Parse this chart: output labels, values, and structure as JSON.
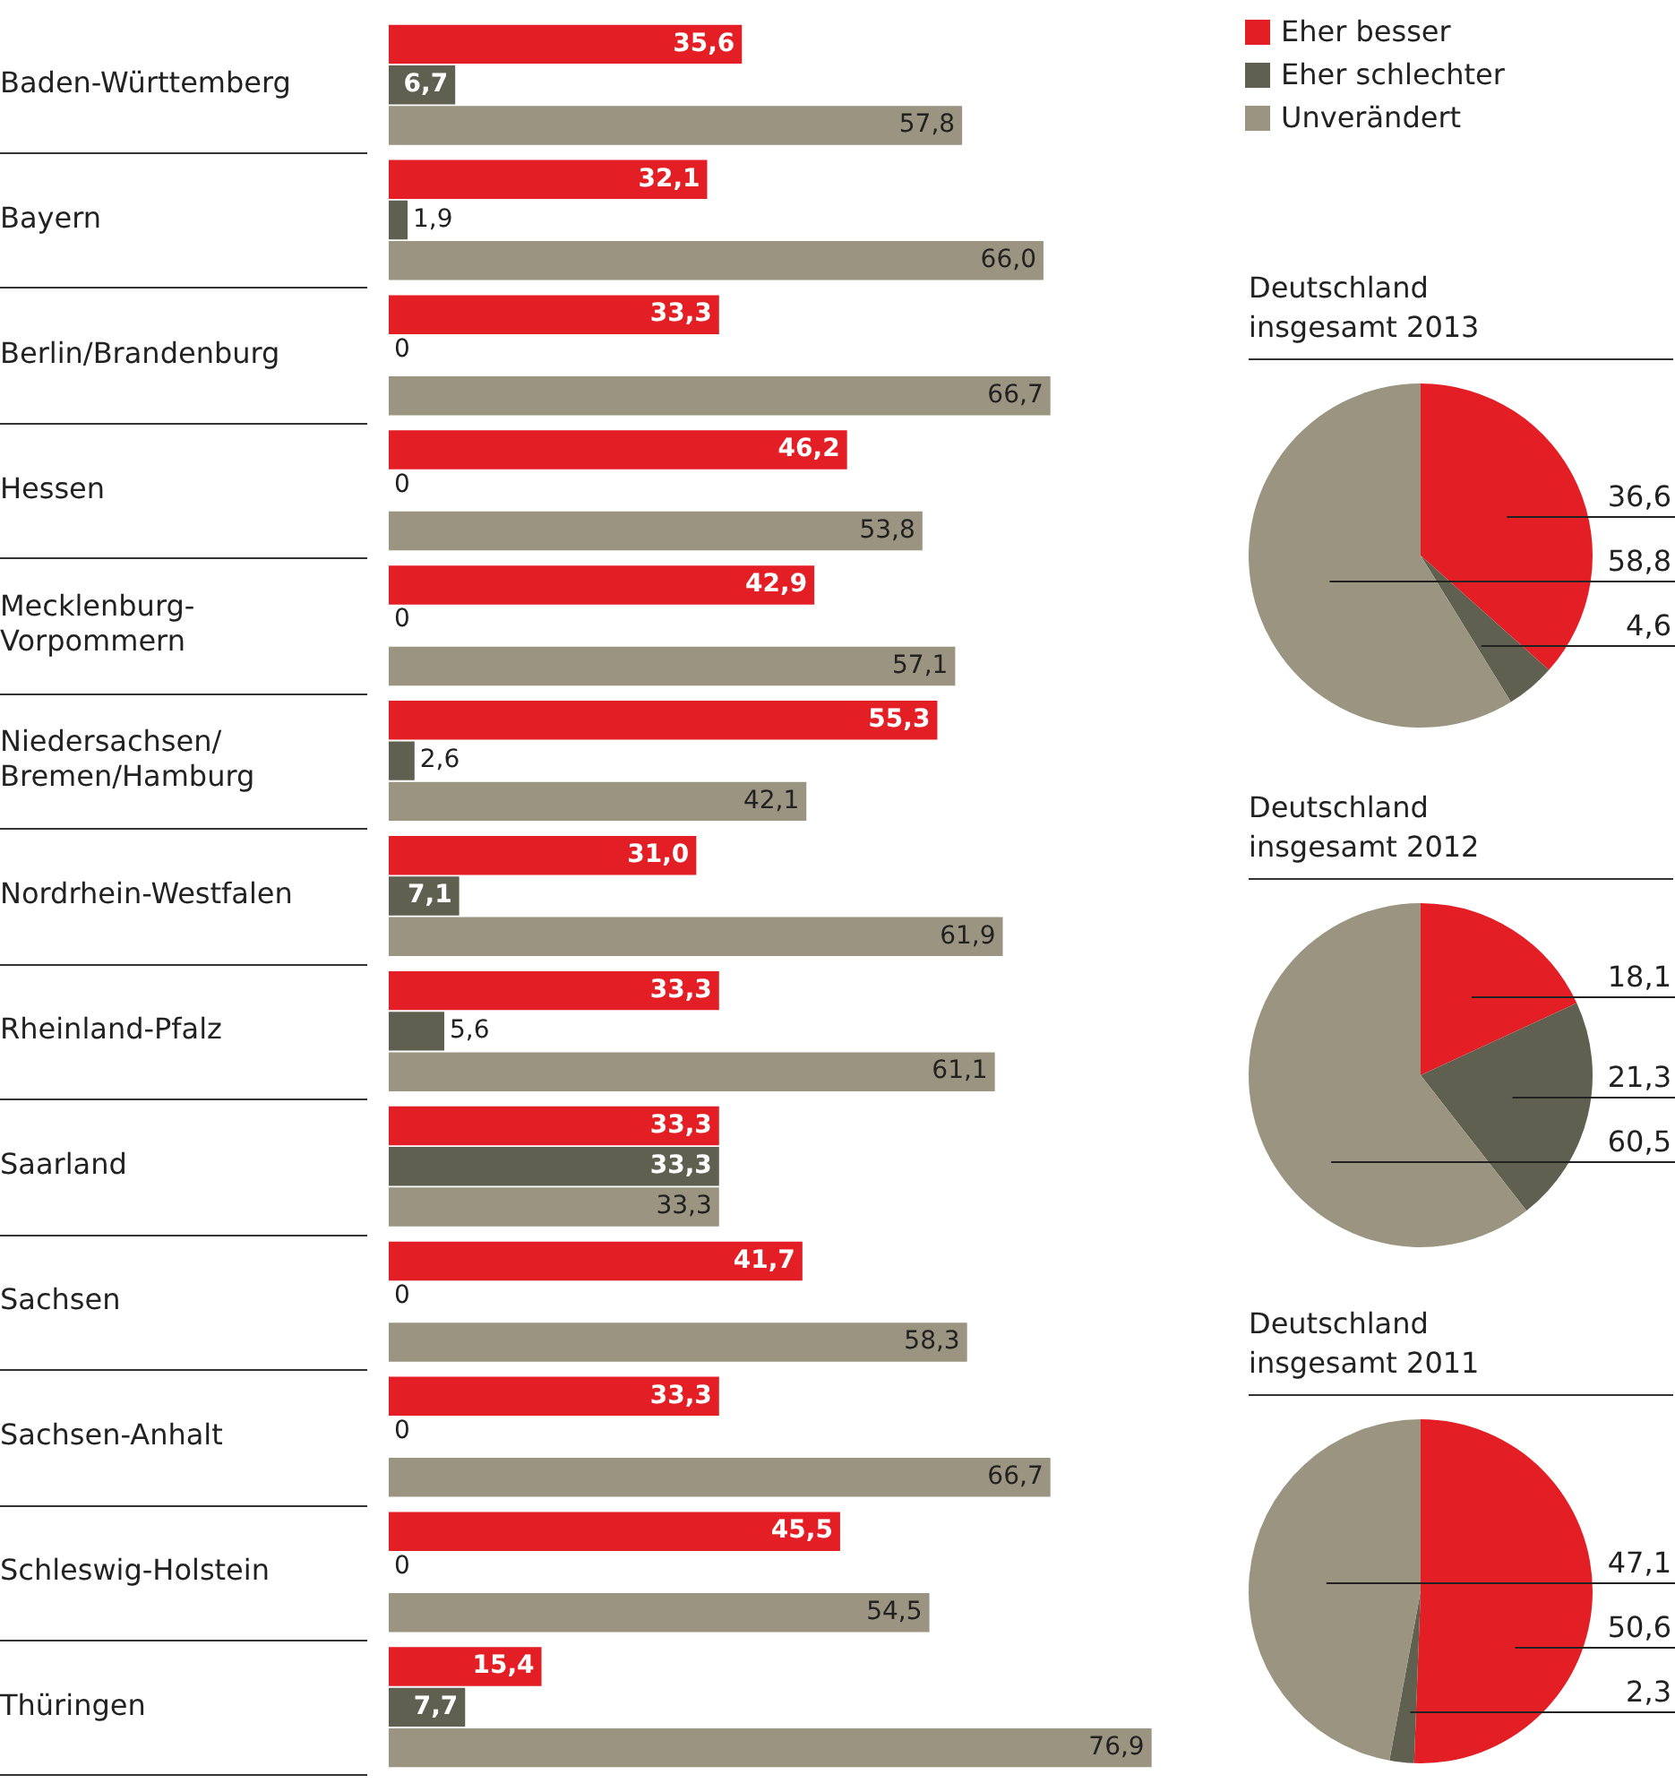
{
  "chart_data": [
    {
      "type": "bar",
      "orientation": "horizontal",
      "legend": "top right",
      "categories": [
        "Baden-Württemberg",
        "Bayern",
        "Berlin/Brandenburg",
        "Hessen",
        "Mecklenburg-Vorpommern",
        "Niedersachsen/Bremen/Hamburg",
        "Nordrhein-Westfalen",
        "Rheinland-Pfalz",
        "Saarland",
        "Sachsen",
        "Sachsen-Anhalt",
        "Schleswig-Holstein",
        "Thüringen"
      ],
      "series": [
        {
          "name": "Eher besser",
          "color": "#e31e24",
          "values": [
            35.6,
            32.1,
            33.3,
            46.2,
            42.9,
            55.3,
            31.0,
            33.3,
            33.3,
            41.7,
            33.3,
            45.5,
            15.4
          ],
          "value_labels": [
            "35,6",
            "32,1",
            "33,3",
            "46,2",
            "42,9",
            "55,3",
            "31,0",
            "33,3",
            "33,3",
            "41,7",
            "33,3",
            "45,5",
            "15,4"
          ]
        },
        {
          "name": "Eher schlechter",
          "color": "#606050",
          "values": [
            6.7,
            1.9,
            0,
            0,
            0,
            2.6,
            7.1,
            5.6,
            33.3,
            0,
            0,
            0,
            7.7
          ],
          "value_labels": [
            "6,7",
            "1,9",
            "0",
            "0",
            "0",
            "2,6",
            "7,1",
            "5,6",
            "33,3",
            "0",
            "0",
            "0",
            "7,7"
          ]
        },
        {
          "name": "Unverändert",
          "color": "#9a9480",
          "values": [
            57.8,
            66.0,
            66.7,
            53.8,
            57.1,
            42.1,
            61.9,
            61.1,
            33.3,
            58.3,
            66.7,
            54.5,
            76.9
          ],
          "value_labels": [
            "57,8",
            "66,0",
            "66,7",
            "53,8",
            "57,1",
            "42,1",
            "61,9",
            "61,1",
            "33,3",
            "58,3",
            "66,7",
            "54,5",
            "76,9"
          ]
        }
      ]
    },
    {
      "type": "pie",
      "title": "Deutschland insgesamt 2013",
      "values": [
        36.6,
        4.6,
        58.8
      ],
      "value_labels": [
        "36,6",
        "4,6",
        "58,8"
      ],
      "colors": [
        "#e31e24",
        "#606050",
        "#9a9480"
      ]
    },
    {
      "type": "pie",
      "title": "Deutschland insgesamt 2012",
      "values": [
        18.1,
        21.3,
        60.5
      ],
      "value_labels": [
        "18,1",
        "21,3",
        "60,5"
      ],
      "colors": [
        "#e31e24",
        "#606050",
        "#9a9480"
      ]
    },
    {
      "type": "pie",
      "title": "Deutschland insgesamt 2011",
      "values": [
        50.6,
        2.3,
        47.1
      ],
      "value_labels": [
        "50,6",
        "2,3",
        "47,1"
      ],
      "colors": [
        "#e31e24",
        "#606050",
        "#9a9480"
      ]
    }
  ]
}
